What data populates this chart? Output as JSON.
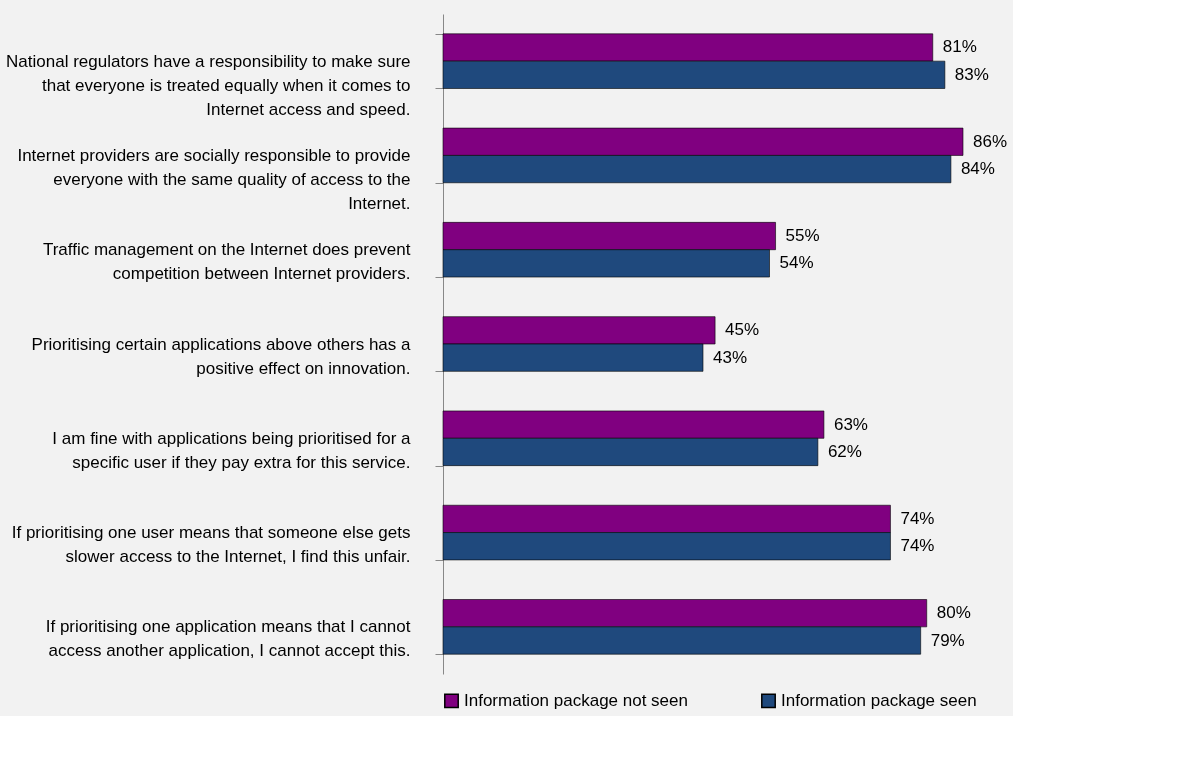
{
  "chart_data": {
    "type": "bar",
    "orientation": "horizontal",
    "categories": [
      "National regulators have a responsibility to make sure that everyone is treated equally when it comes to Internet access and speed.",
      "Internet providers are socially responsible to provide everyone with the same quality of access to the Internet.",
      "Traffic management on the Internet does prevent competition between Internet providers.",
      "Prioritising certain applications above others has a positive effect on innovation.",
      "I am fine with applications being prioritised for a specific user if they pay extra for this service.",
      "If prioritising one user means that someone else gets slower access to the Internet, I find this unfair.",
      "If prioritising one application means that I cannot access another application, I cannot accept this."
    ],
    "series": [
      {
        "name": "Information package not seen",
        "color": "#800080",
        "values": [
          81,
          86,
          55,
          45,
          63,
          74,
          80
        ],
        "value_labels": [
          "81%",
          "86%",
          "55%",
          "45%",
          "63%",
          "74%",
          "80%"
        ]
      },
      {
        "name": "Information package seen",
        "color": "#1f497d",
        "values": [
          83,
          84,
          54,
          43,
          62,
          74,
          79
        ],
        "value_labels": [
          "83%",
          "84%",
          "54%",
          "43%",
          "62%",
          "74%",
          "79%"
        ]
      }
    ],
    "tick_labels": "y",
    "legend": "bottom",
    "grid": false
  }
}
